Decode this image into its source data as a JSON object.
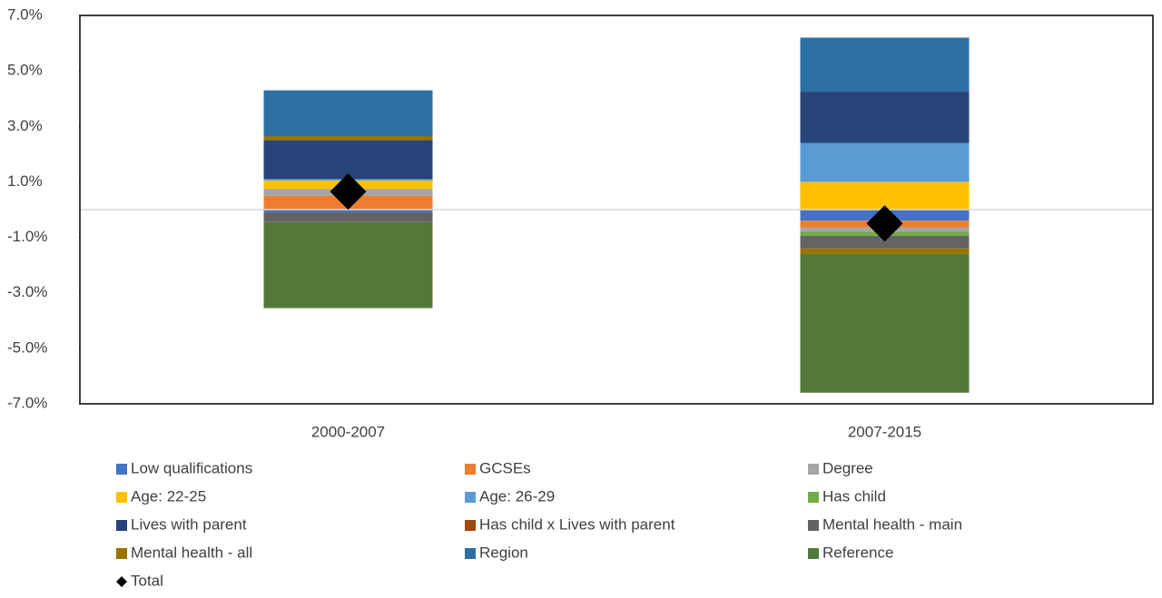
{
  "chart_data": {
    "type": "stacked-bar",
    "categories": [
      "2000-2007",
      "2007-2015"
    ],
    "series": [
      {
        "name": "Low qualifications",
        "color": "#4472c4",
        "values": [
          -0.1,
          -0.4
        ]
      },
      {
        "name": "GCSEs",
        "color": "#ed7d31",
        "values": [
          0.5,
          -0.25
        ]
      },
      {
        "name": "Degree",
        "color": "#a5a5a5",
        "values": [
          0.25,
          -0.15
        ]
      },
      {
        "name": "Age: 22-25",
        "color": "#ffc000",
        "values": [
          0.3,
          1.0
        ]
      },
      {
        "name": "Age: 26-29",
        "color": "#5b9bd5",
        "values": [
          0.05,
          1.4
        ]
      },
      {
        "name": "Has child",
        "color": "#70ad47",
        "values": [
          0,
          -0.15
        ]
      },
      {
        "name": "Lives with parent",
        "color": "#264478",
        "values": [
          1.4,
          1.85
        ]
      },
      {
        "name": "Has child x Lives with parent",
        "color": "#9e480e",
        "values": [
          0,
          0
        ]
      },
      {
        "name": "Mental health - main",
        "color": "#636363",
        "values": [
          -0.35,
          -0.45
        ]
      },
      {
        "name": "Mental health - all",
        "color": "#997300",
        "values": [
          0.15,
          -0.2
        ]
      },
      {
        "name": "Region",
        "color": "#2e6fa4",
        "values": [
          1.65,
          1.95
        ]
      },
      {
        "name": "Reference",
        "color": "#53793a",
        "values": [
          -3.1,
          -5.0
        ]
      }
    ],
    "total": {
      "name": "Total",
      "color": "#000000",
      "values": [
        0.65,
        -0.5
      ]
    },
    "ylim": [
      -7,
      7
    ],
    "yticks": [
      {
        "value": -7,
        "label": "-7.0%"
      },
      {
        "value": -5,
        "label": "-5.0%"
      },
      {
        "value": -3,
        "label": "-3.0%"
      },
      {
        "value": -1,
        "label": "-1.0%"
      },
      {
        "value": 1,
        "label": "1.0%"
      },
      {
        "value": 3,
        "label": "3.0%"
      },
      {
        "value": 5,
        "label": "5.0%"
      },
      {
        "value": 7,
        "label": "7.0%"
      }
    ],
    "legend": "bottom"
  }
}
